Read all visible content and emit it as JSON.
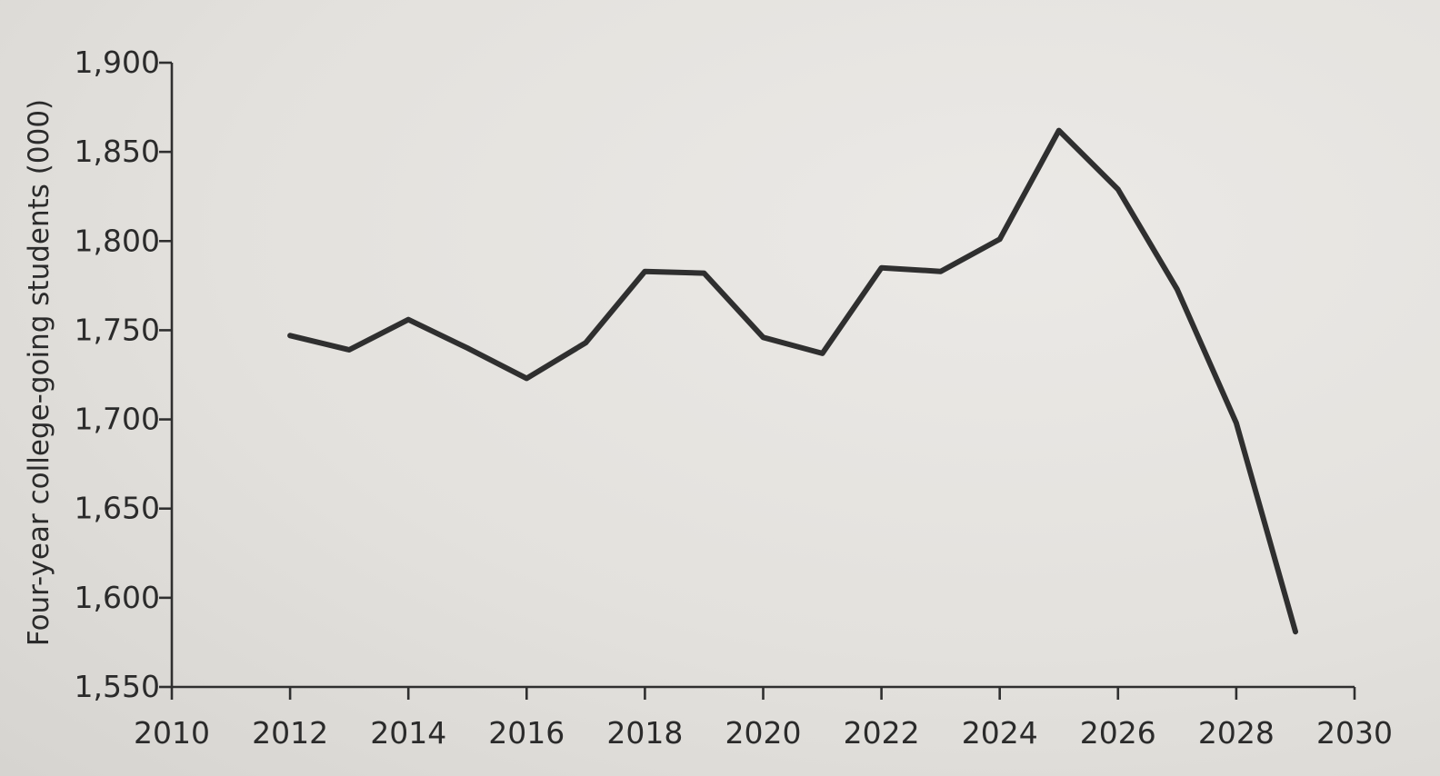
{
  "chart_data": {
    "type": "line",
    "title": "",
    "xlabel": "",
    "ylabel": "Four-year college-going students (000)",
    "xlim": [
      2010,
      2030
    ],
    "ylim": [
      1550,
      1900
    ],
    "x_ticks": [
      2010,
      2012,
      2014,
      2016,
      2018,
      2020,
      2022,
      2024,
      2026,
      2028,
      2030
    ],
    "x_tick_labels": [
      "2010",
      "2012",
      "2014",
      "2016",
      "2018",
      "2020",
      "2022",
      "2024",
      "2026",
      "2028",
      "2030"
    ],
    "y_ticks": [
      1550,
      1600,
      1650,
      1700,
      1750,
      1800,
      1850,
      1900
    ],
    "y_tick_labels": [
      "1,550",
      "1,600",
      "1,650",
      "1,700",
      "1,750",
      "1,800",
      "1,850",
      "1,900"
    ],
    "grid": false,
    "legend": "none",
    "series": [
      {
        "color": "#2f2f2f",
        "x": [
          2012,
          2013,
          2014,
          2015,
          2016,
          2017,
          2018,
          2019,
          2020,
          2021,
          2022,
          2023,
          2024,
          2025,
          2026,
          2027,
          2028,
          2029
        ],
        "y": [
          1747,
          1739,
          1756,
          1740,
          1723,
          1743,
          1783,
          1782,
          1746,
          1737,
          1785,
          1783,
          1801,
          1862,
          1829,
          1773,
          1698,
          1581
        ]
      }
    ]
  }
}
